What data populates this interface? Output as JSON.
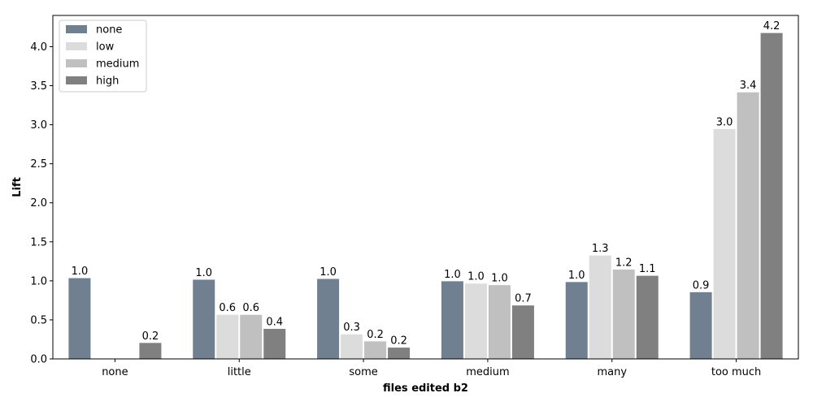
{
  "chart_data": {
    "type": "bar",
    "categories": [
      "none",
      "little",
      "some",
      "medium",
      "many",
      "too much"
    ],
    "series": [
      {
        "name": "none",
        "color": "#708090",
        "values": [
          1.04,
          1.02,
          1.03,
          1.0,
          0.99,
          0.86
        ],
        "labels": [
          "1.0",
          "1.0",
          "1.0",
          "1.0",
          "1.0",
          "0.9"
        ]
      },
      {
        "name": "low",
        "color": "#dcdcdc",
        "values": [
          0.0,
          0.57,
          0.32,
          0.97,
          1.33,
          2.95
        ],
        "labels": [
          "",
          "0.6",
          "0.3",
          "1.0",
          "1.3",
          "3.0"
        ]
      },
      {
        "name": "medium",
        "color": "#c0c0c0",
        "values": [
          0.0,
          0.57,
          0.23,
          0.95,
          1.15,
          3.42
        ],
        "labels": [
          "",
          "0.6",
          "0.2",
          "1.0",
          "1.2",
          "3.4"
        ]
      },
      {
        "name": "high",
        "color": "#808080",
        "values": [
          0.21,
          0.39,
          0.15,
          0.69,
          1.07,
          4.18
        ],
        "labels": [
          "0.2",
          "0.4",
          "0.2",
          "0.7",
          "1.1",
          "4.2"
        ]
      }
    ],
    "xlabel": "files edited b2",
    "ylabel": "Lift",
    "ylim": [
      0,
      4.4
    ],
    "yticks": [
      0.0,
      0.5,
      1.0,
      1.5,
      2.0,
      2.5,
      3.0,
      3.5,
      4.0
    ],
    "ytick_labels": [
      "0.0",
      "0.5",
      "1.0",
      "1.5",
      "2.0",
      "2.5",
      "3.0",
      "3.5",
      "4.0"
    ],
    "grid": false,
    "legend_position": "top-left"
  }
}
